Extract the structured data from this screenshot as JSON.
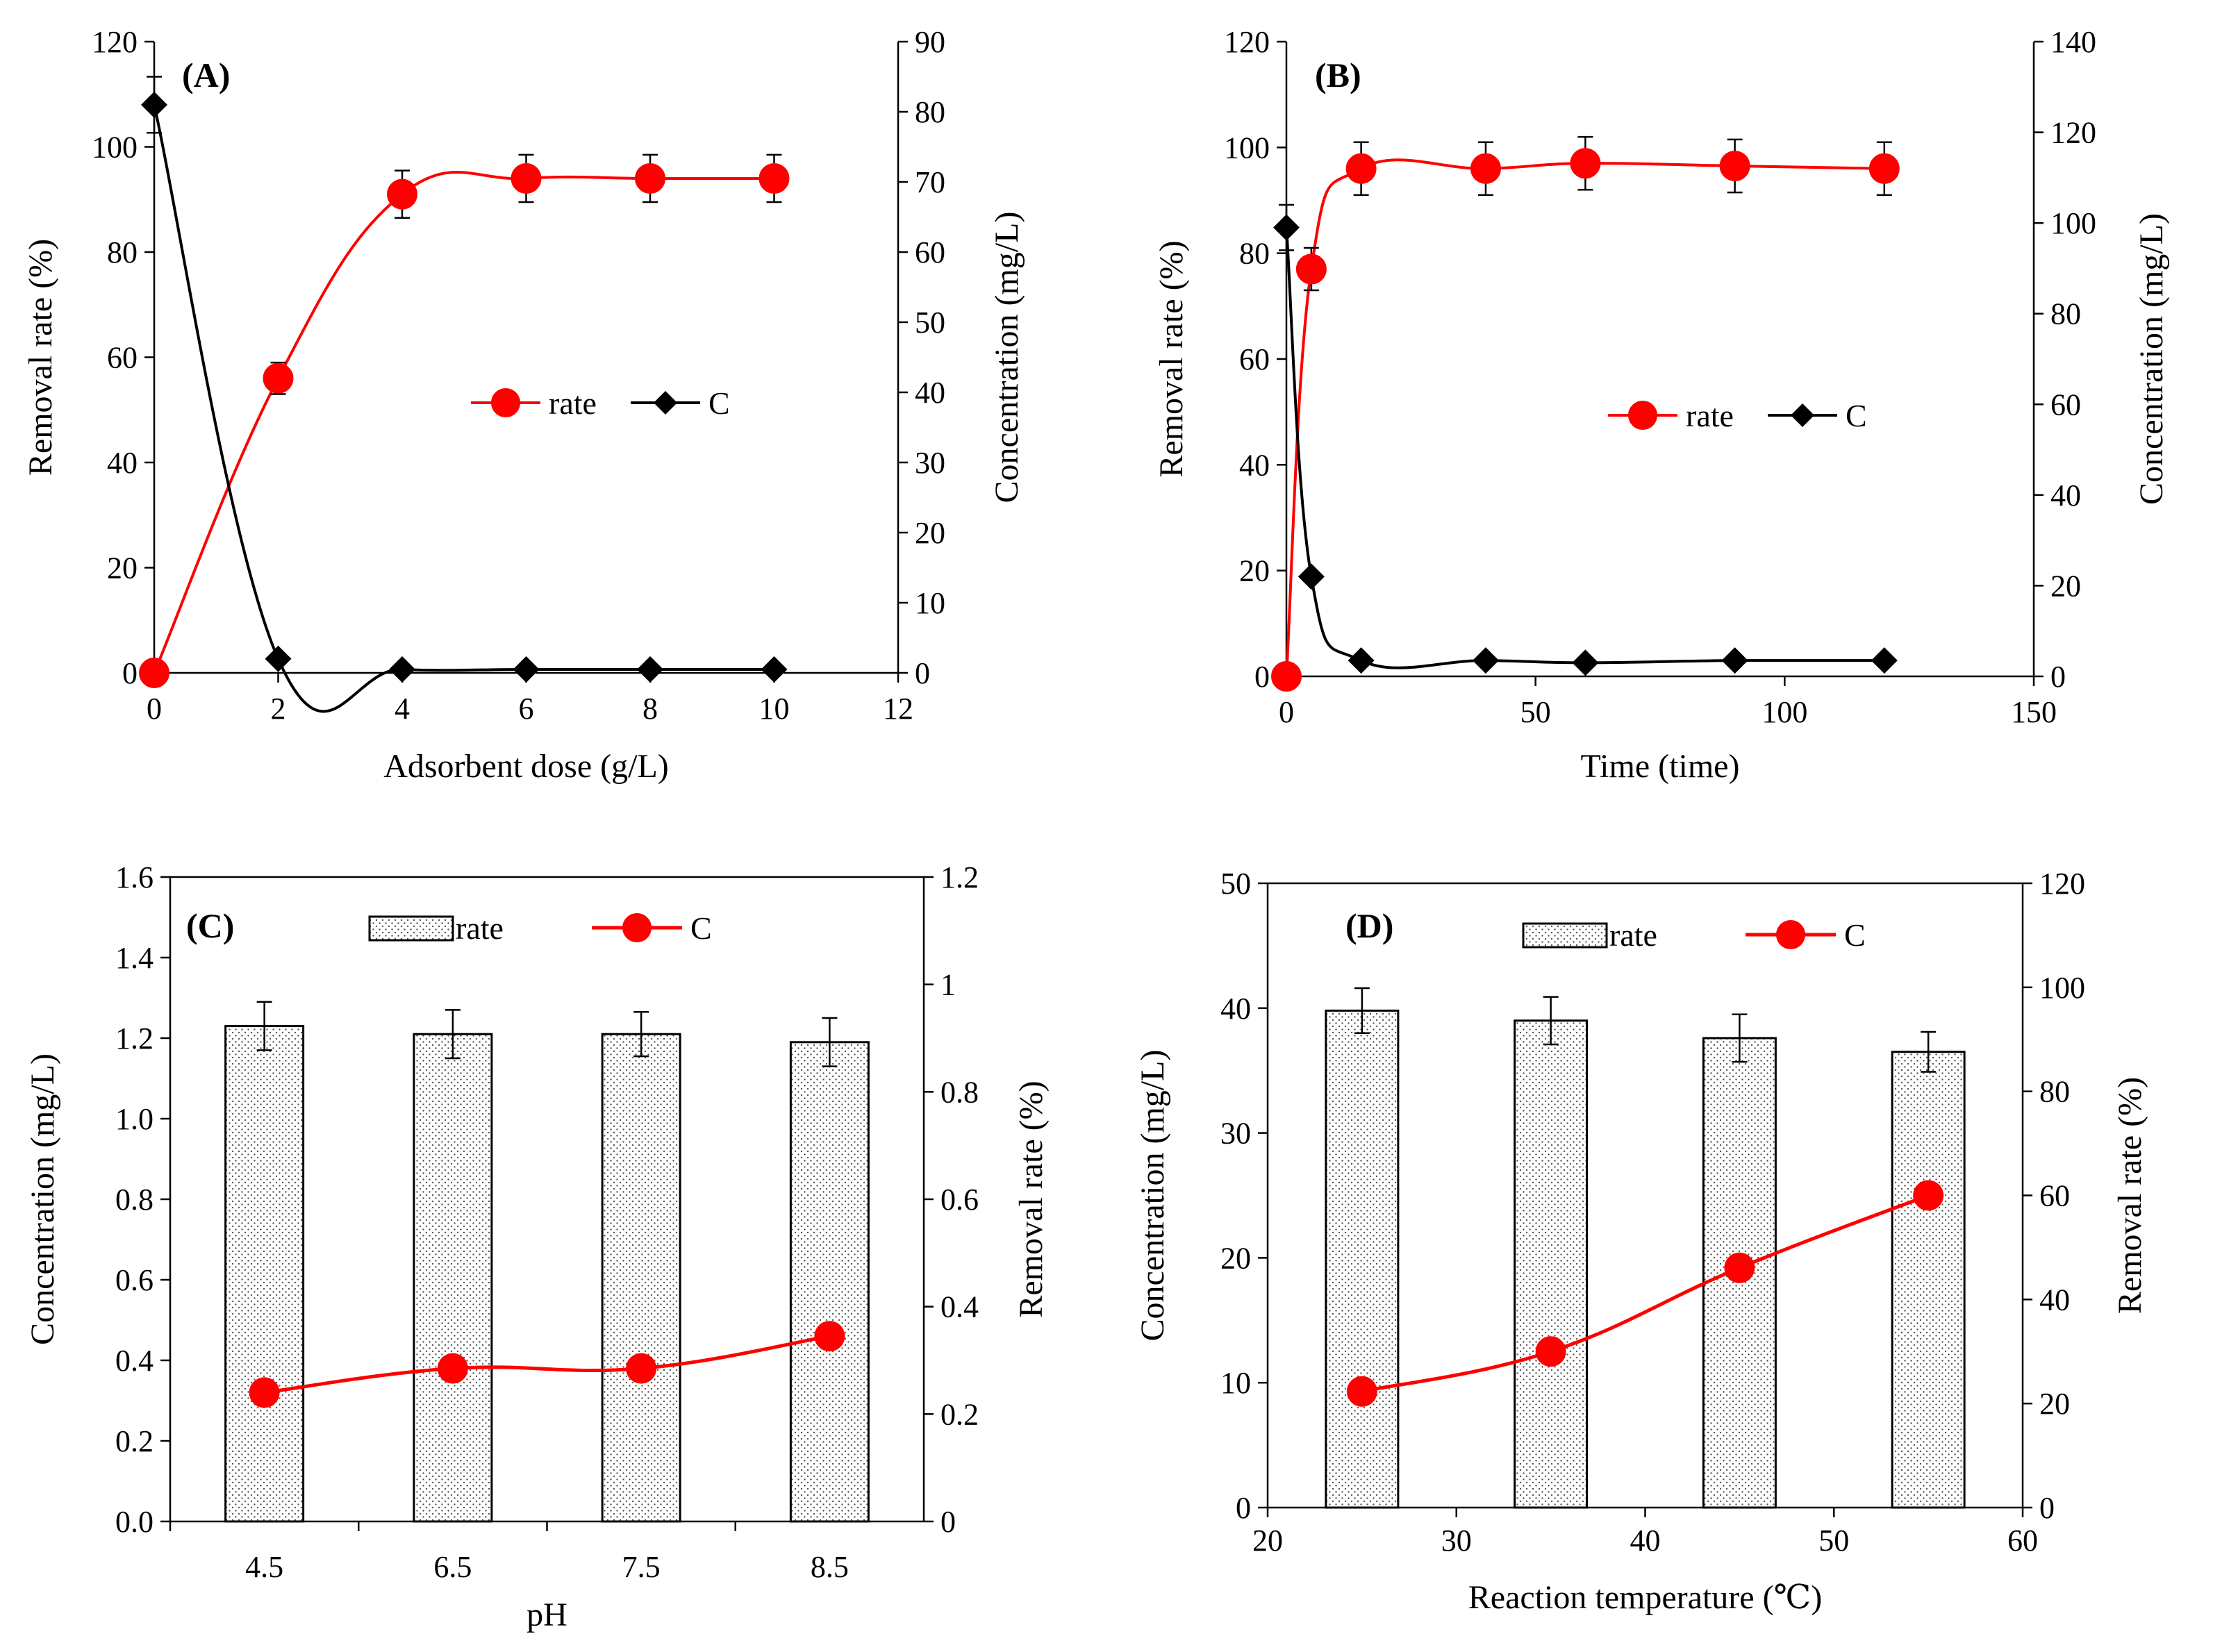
{
  "colors": {
    "rate": "#ff0000",
    "conc": "#000000"
  },
  "chart_data": [
    {
      "panel": "(A)",
      "type": "line",
      "xlabel": "Adsorbent dose  (g/L)",
      "ylabel": "Removal rate  (%)",
      "y2label": "Concentration  (mg/L)",
      "xlim": [
        0,
        12
      ],
      "xticks": [
        0,
        2,
        4,
        6,
        8,
        10,
        12
      ],
      "ylim": [
        0,
        120
      ],
      "yticks": [
        0,
        20,
        40,
        60,
        80,
        100,
        120
      ],
      "y2lim": [
        0,
        90
      ],
      "y2ticks": [
        0,
        10,
        20,
        30,
        40,
        50,
        60,
        70,
        80,
        90
      ],
      "legend": [
        "rate",
        "C"
      ],
      "series": [
        {
          "name": "rate",
          "axis": "left",
          "marker": "circle",
          "x": [
            0,
            2,
            4,
            6,
            8,
            10
          ],
          "y": [
            0,
            56,
            91,
            94,
            94,
            94
          ],
          "err": [
            0,
            3,
            4.5,
            4.5,
            4.5,
            4.5
          ]
        },
        {
          "name": "C",
          "axis": "right",
          "marker": "diamond",
          "x": [
            0,
            2,
            4,
            6,
            8,
            10
          ],
          "y": [
            81,
            2,
            0.5,
            0.5,
            0.5,
            0.5
          ],
          "err": [
            4,
            0,
            0,
            0,
            0,
            0
          ]
        }
      ]
    },
    {
      "panel": "(B)",
      "type": "line",
      "xlabel": "Time (time)",
      "ylabel": "Removal rate  (%)",
      "y2label": "Concentration  (mg/L)",
      "xlim": [
        0,
        150
      ],
      "xticks": [
        0,
        50,
        100,
        150
      ],
      "ylim": [
        0,
        120
      ],
      "yticks": [
        0,
        20,
        40,
        60,
        80,
        100,
        120
      ],
      "y2lim": [
        0,
        140
      ],
      "y2ticks": [
        0,
        20,
        40,
        60,
        80,
        100,
        120,
        140
      ],
      "legend": [
        "rate",
        "C"
      ],
      "series": [
        {
          "name": "rate",
          "axis": "left",
          "marker": "circle",
          "x": [
            0,
            5,
            15,
            40,
            60,
            90,
            120
          ],
          "y": [
            0,
            77,
            96,
            96,
            97,
            96.5,
            96
          ],
          "err": [
            0,
            4,
            5,
            5,
            5,
            5,
            5
          ]
        },
        {
          "name": "C",
          "axis": "right",
          "marker": "diamond",
          "x": [
            0,
            5,
            15,
            40,
            60,
            90,
            120
          ],
          "y": [
            99,
            22,
            3.5,
            3.5,
            3,
            3.5,
            3.5
          ],
          "err": [
            5,
            0,
            0,
            0,
            0,
            0,
            0
          ]
        }
      ]
    },
    {
      "panel": "(C)",
      "type": "bar",
      "xlabel": "pH",
      "ylabel": "Concentration (mg/L)",
      "y2label": "Removal rate (%)",
      "categories": [
        "4.5",
        "6.5",
        "7.5",
        "8.5"
      ],
      "ylim": [
        0,
        1.6
      ],
      "yticks": [
        "0.0",
        "0.2",
        "0.4",
        "0.6",
        "0.8",
        "1.0",
        "1.2",
        "1.4",
        "1.6"
      ],
      "y2lim": [
        0,
        1.2
      ],
      "y2ticks": [
        "0",
        "0.2",
        "0.4",
        "0.6",
        "0.8",
        "1",
        "1.2"
      ],
      "legend": [
        "rate",
        "C"
      ],
      "series": [
        {
          "name": "rate",
          "kind": "bar",
          "axis": "left",
          "values": [
            1.23,
            1.21,
            1.21,
            1.19
          ],
          "err": [
            0.06,
            0.06,
            0.055,
            0.06
          ]
        },
        {
          "name": "C",
          "kind": "line",
          "axis": "left",
          "marker": "circle",
          "values": [
            0.32,
            0.38,
            0.38,
            0.46
          ]
        }
      ]
    },
    {
      "panel": "(D)",
      "type": "bar",
      "xlabel": "Reaction temperature (℃)",
      "ylabel": "Concentration (mg/L)",
      "y2label": "Removal rate (%)",
      "xlim": [
        20,
        60
      ],
      "xticks": [
        20,
        30,
        40,
        50,
        60
      ],
      "ylim": [
        0,
        50
      ],
      "yticks": [
        0,
        10,
        20,
        30,
        40,
        50
      ],
      "y2lim": [
        0,
        120
      ],
      "y2ticks": [
        0,
        20,
        40,
        60,
        80,
        100,
        120
      ],
      "legend": [
        "rate",
        "C"
      ],
      "series": [
        {
          "name": "rate",
          "kind": "bar",
          "axis": "left",
          "x": [
            25,
            35,
            45,
            55
          ],
          "values": [
            39.8,
            39,
            37.6,
            36.5
          ],
          "err": [
            1.8,
            1.9,
            1.9,
            1.6
          ]
        },
        {
          "name": "C",
          "kind": "line",
          "axis": "left",
          "marker": "circle",
          "x": [
            25,
            35,
            45,
            55
          ],
          "values": [
            9.3,
            12.5,
            19.2,
            25
          ]
        }
      ]
    }
  ]
}
